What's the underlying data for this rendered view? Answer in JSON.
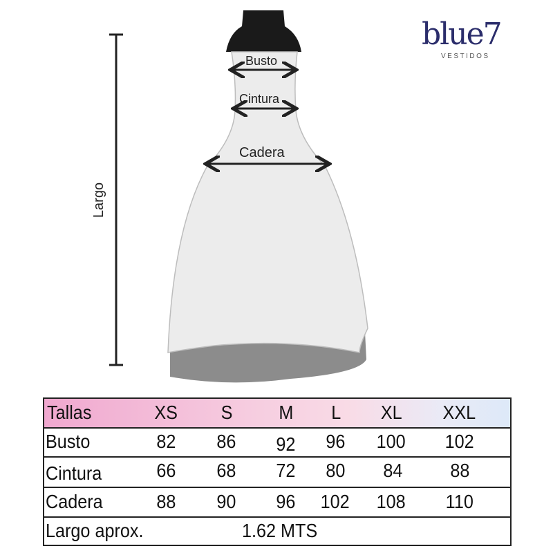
{
  "logo": {
    "word": "blue7",
    "sub": "VESTIDOS"
  },
  "diagram": {
    "busto": "Busto",
    "cintura": "Cintura",
    "cadera": "Cadera",
    "largo": "Largo"
  },
  "table": {
    "header": [
      "Tallas",
      "XS",
      "S",
      "M",
      "L",
      "XL",
      "XXL"
    ],
    "rows": [
      [
        "Busto",
        "82",
        "86",
        "92",
        "96",
        "100",
        "102"
      ],
      [
        "Cintura",
        "66",
        "68",
        "72",
        "80",
        "84",
        "88"
      ],
      [
        "Cadera",
        "88",
        "90",
        "96",
        "102",
        "108",
        "110"
      ]
    ],
    "largo_label": "Largo aprox.",
    "largo_value": "1.62 MTS"
  }
}
